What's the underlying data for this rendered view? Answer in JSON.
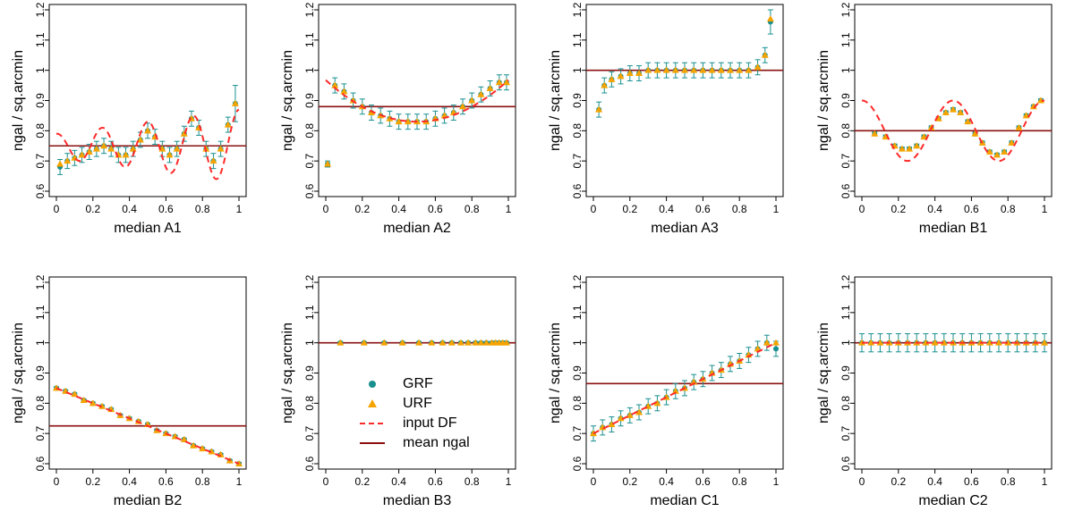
{
  "colors": {
    "grf": "#1a8f8f",
    "urf": "#f5a300",
    "input_df": "#ff2a2a",
    "mean_ngal": "#8b1010",
    "axis": "#000000"
  },
  "legend": {
    "panel": "median B3",
    "items": [
      {
        "label": "GRF",
        "marker": "circle",
        "color": "#1a8f8f"
      },
      {
        "label": "URF",
        "marker": "triangle",
        "color": "#f5a300"
      },
      {
        "label": "input DF",
        "marker": "dashed-line",
        "color": "#ff2a2a"
      },
      {
        "label": "mean ngal",
        "marker": "solid-line",
        "color": "#8b1010"
      }
    ]
  },
  "chart_data": [
    {
      "type": "scatter",
      "title": "",
      "xlabel": "median A1",
      "ylabel": "ngal / sq.arcmin",
      "xlim": [
        0,
        1
      ],
      "ylim": [
        0.6,
        1.2
      ],
      "xticks": [
        "0",
        "0.2",
        "0.4",
        "0.6",
        "0.8",
        "1"
      ],
      "yticks": [
        "0.6",
        "0.7",
        "0.8",
        "0.9",
        "1",
        "1.1",
        "1.2"
      ],
      "mean_ngal": 0.75,
      "input_df": "0.75 + 0.05*sin(2*pi*4*x) scaled up toward x=1",
      "series": [
        {
          "name": "GRF",
          "x": [
            0.02,
            0.06,
            0.1,
            0.14,
            0.18,
            0.22,
            0.26,
            0.3,
            0.34,
            0.38,
            0.42,
            0.46,
            0.5,
            0.54,
            0.58,
            0.62,
            0.66,
            0.7,
            0.74,
            0.78,
            0.82,
            0.86,
            0.9,
            0.94,
            0.98
          ],
          "y": [
            0.68,
            0.7,
            0.71,
            0.72,
            0.73,
            0.74,
            0.75,
            0.74,
            0.72,
            0.72,
            0.74,
            0.77,
            0.8,
            0.78,
            0.74,
            0.72,
            0.74,
            0.79,
            0.84,
            0.81,
            0.74,
            0.7,
            0.74,
            0.82,
            0.89
          ]
        },
        {
          "name": "URF",
          "x": [
            0.02,
            0.06,
            0.1,
            0.14,
            0.18,
            0.22,
            0.26,
            0.3,
            0.34,
            0.38,
            0.42,
            0.46,
            0.5,
            0.54,
            0.58,
            0.62,
            0.66,
            0.7,
            0.74,
            0.78,
            0.82,
            0.86,
            0.9,
            0.94,
            0.98
          ],
          "y": [
            0.69,
            0.7,
            0.71,
            0.72,
            0.73,
            0.74,
            0.75,
            0.74,
            0.72,
            0.72,
            0.74,
            0.77,
            0.8,
            0.78,
            0.74,
            0.72,
            0.74,
            0.79,
            0.84,
            0.81,
            0.74,
            0.7,
            0.74,
            0.82,
            0.89
          ]
        }
      ]
    },
    {
      "type": "scatter",
      "title": "",
      "xlabel": "median A2",
      "ylabel": "ngal / sq.arcmin",
      "xlim": [
        0,
        1
      ],
      "ylim": [
        0.6,
        1.2
      ],
      "xticks": [
        "0",
        "0.2",
        "0.4",
        "0.6",
        "0.8",
        "1"
      ],
      "yticks": [
        "0.6",
        "0.7",
        "0.8",
        "0.9",
        "1",
        "1.1",
        "1.2"
      ],
      "mean_ngal": 0.88,
      "input_df": "0.83 + 0.55*(x-0.5)^2",
      "series": [
        {
          "name": "GRF",
          "x": [
            0.01,
            0.05,
            0.1,
            0.15,
            0.2,
            0.25,
            0.3,
            0.35,
            0.4,
            0.45,
            0.5,
            0.55,
            0.6,
            0.65,
            0.7,
            0.75,
            0.8,
            0.85,
            0.9,
            0.95,
            0.99
          ],
          "y": [
            0.69,
            0.95,
            0.93,
            0.9,
            0.88,
            0.86,
            0.85,
            0.84,
            0.83,
            0.83,
            0.83,
            0.83,
            0.84,
            0.85,
            0.86,
            0.88,
            0.9,
            0.92,
            0.94,
            0.96,
            0.96
          ]
        },
        {
          "name": "URF",
          "x": [
            0.01,
            0.05,
            0.1,
            0.15,
            0.2,
            0.25,
            0.3,
            0.35,
            0.4,
            0.45,
            0.5,
            0.55,
            0.6,
            0.65,
            0.7,
            0.75,
            0.8,
            0.85,
            0.9,
            0.95,
            0.99
          ],
          "y": [
            0.69,
            0.95,
            0.93,
            0.9,
            0.88,
            0.86,
            0.85,
            0.84,
            0.83,
            0.83,
            0.83,
            0.83,
            0.84,
            0.85,
            0.86,
            0.88,
            0.9,
            0.92,
            0.94,
            0.96,
            0.96
          ]
        }
      ]
    },
    {
      "type": "scatter",
      "title": "",
      "xlabel": "median A3",
      "ylabel": "ngal / sq.arcmin",
      "xlim": [
        0,
        1
      ],
      "ylim": [
        0.6,
        1.2
      ],
      "xticks": [
        "0",
        "0.2",
        "0.4",
        "0.6",
        "0.8",
        "1"
      ],
      "yticks": [
        "0.6",
        "0.7",
        "0.8",
        "0.9",
        "1",
        "1.1",
        "1.2"
      ],
      "mean_ngal": 1.0,
      "input_df": "",
      "series": [
        {
          "name": "GRF",
          "x": [
            0.03,
            0.06,
            0.1,
            0.15,
            0.2,
            0.25,
            0.3,
            0.35,
            0.4,
            0.45,
            0.5,
            0.55,
            0.6,
            0.65,
            0.7,
            0.75,
            0.8,
            0.85,
            0.9,
            0.94,
            0.97
          ],
          "y": [
            0.87,
            0.95,
            0.97,
            0.98,
            0.99,
            0.99,
            1.0,
            1.0,
            1.0,
            1.0,
            1.0,
            1.0,
            1.0,
            1.0,
            1.0,
            1.0,
            1.0,
            1.0,
            1.01,
            1.05,
            1.16
          ]
        },
        {
          "name": "URF",
          "x": [
            0.03,
            0.06,
            0.1,
            0.15,
            0.2,
            0.25,
            0.3,
            0.35,
            0.4,
            0.45,
            0.5,
            0.55,
            0.6,
            0.65,
            0.7,
            0.75,
            0.8,
            0.85,
            0.9,
            0.94,
            0.97
          ],
          "y": [
            0.87,
            0.95,
            0.97,
            0.98,
            0.99,
            0.99,
            1.0,
            1.0,
            1.0,
            1.0,
            1.0,
            1.0,
            1.0,
            1.0,
            1.0,
            1.0,
            1.0,
            1.0,
            1.01,
            1.05,
            1.17
          ]
        }
      ]
    },
    {
      "type": "scatter",
      "title": "",
      "xlabel": "median B1",
      "ylabel": "ngal / sq.arcmin",
      "xlim": [
        0,
        1
      ],
      "ylim": [
        0.6,
        1.2
      ],
      "xticks": [
        "0",
        "0.2",
        "0.4",
        "0.6",
        "0.8",
        "1"
      ],
      "yticks": [
        "0.6",
        "0.7",
        "0.8",
        "0.9",
        "1",
        "1.1",
        "1.2"
      ],
      "mean_ngal": 0.8,
      "input_df": "0.8 + 0.1*cos(4*pi*x)",
      "series": [
        {
          "name": "GRF",
          "x": [
            0.07,
            0.13,
            0.18,
            0.22,
            0.26,
            0.3,
            0.34,
            0.38,
            0.42,
            0.46,
            0.5,
            0.54,
            0.58,
            0.62,
            0.66,
            0.7,
            0.74,
            0.78,
            0.82,
            0.86,
            0.9,
            0.94,
            0.98
          ],
          "y": [
            0.79,
            0.78,
            0.75,
            0.74,
            0.74,
            0.75,
            0.78,
            0.81,
            0.84,
            0.86,
            0.87,
            0.86,
            0.83,
            0.79,
            0.76,
            0.73,
            0.72,
            0.73,
            0.76,
            0.81,
            0.85,
            0.88,
            0.9
          ]
        },
        {
          "name": "URF",
          "x": [
            0.07,
            0.13,
            0.18,
            0.22,
            0.26,
            0.3,
            0.34,
            0.38,
            0.42,
            0.46,
            0.5,
            0.54,
            0.58,
            0.62,
            0.66,
            0.7,
            0.74,
            0.78,
            0.82,
            0.86,
            0.9,
            0.94,
            0.98
          ],
          "y": [
            0.79,
            0.78,
            0.75,
            0.74,
            0.74,
            0.75,
            0.78,
            0.81,
            0.84,
            0.86,
            0.87,
            0.86,
            0.83,
            0.79,
            0.76,
            0.73,
            0.72,
            0.73,
            0.76,
            0.81,
            0.85,
            0.88,
            0.9
          ]
        }
      ]
    },
    {
      "type": "scatter",
      "title": "",
      "xlabel": "median B2",
      "ylabel": "ngal / sq.arcmin",
      "xlim": [
        0,
        1
      ],
      "ylim": [
        0.6,
        1.2
      ],
      "xticks": [
        "0",
        "0.2",
        "0.4",
        "0.6",
        "0.8",
        "1"
      ],
      "yticks": [
        "0.6",
        "0.7",
        "0.8",
        "0.9",
        "1",
        "1.1",
        "1.2"
      ],
      "mean_ngal": 0.725,
      "input_df": "0.85 - 0.25*x",
      "series": [
        {
          "name": "GRF",
          "x": [
            0.0,
            0.05,
            0.1,
            0.15,
            0.2,
            0.25,
            0.3,
            0.35,
            0.4,
            0.45,
            0.5,
            0.55,
            0.6,
            0.65,
            0.7,
            0.75,
            0.8,
            0.85,
            0.9,
            0.95,
            1.0
          ],
          "y": [
            0.85,
            0.84,
            0.83,
            0.81,
            0.8,
            0.79,
            0.78,
            0.76,
            0.75,
            0.74,
            0.73,
            0.71,
            0.7,
            0.69,
            0.68,
            0.66,
            0.65,
            0.64,
            0.63,
            0.61,
            0.6
          ]
        },
        {
          "name": "URF",
          "x": [
            0.0,
            0.05,
            0.1,
            0.15,
            0.2,
            0.25,
            0.3,
            0.35,
            0.4,
            0.45,
            0.5,
            0.55,
            0.6,
            0.65,
            0.7,
            0.75,
            0.8,
            0.85,
            0.9,
            0.95,
            1.0
          ],
          "y": [
            0.85,
            0.84,
            0.83,
            0.81,
            0.8,
            0.79,
            0.78,
            0.76,
            0.75,
            0.74,
            0.73,
            0.71,
            0.7,
            0.69,
            0.68,
            0.66,
            0.65,
            0.64,
            0.63,
            0.61,
            0.6
          ]
        }
      ]
    },
    {
      "type": "scatter",
      "title": "",
      "xlabel": "median B3",
      "ylabel": "ngal / sq.arcmin",
      "xlim": [
        0,
        1
      ],
      "ylim": [
        0.6,
        1.2
      ],
      "xticks": [
        "0",
        "0.2",
        "0.4",
        "0.6",
        "0.8",
        "1"
      ],
      "yticks": [
        "0.6",
        "0.7",
        "0.8",
        "0.9",
        "1",
        "1.1",
        "1.2"
      ],
      "mean_ngal": 1.0,
      "input_df": "",
      "series": [
        {
          "name": "GRF",
          "x": [
            0.08,
            0.21,
            0.32,
            0.42,
            0.51,
            0.58,
            0.64,
            0.69,
            0.74,
            0.78,
            0.82,
            0.85,
            0.88,
            0.91,
            0.93,
            0.95,
            0.97,
            0.99
          ],
          "y": [
            1.0,
            1.0,
            1.0,
            1.0,
            1.0,
            1.0,
            1.0,
            1.0,
            1.0,
            1.0,
            1.0,
            1.0,
            1.0,
            1.0,
            1.0,
            1.0,
            1.0,
            1.0
          ]
        },
        {
          "name": "URF",
          "x": [
            0.08,
            0.21,
            0.32,
            0.42,
            0.51,
            0.58,
            0.64,
            0.69,
            0.74,
            0.78,
            0.82,
            0.85,
            0.88,
            0.91,
            0.93,
            0.95,
            0.97,
            0.99
          ],
          "y": [
            1.0,
            1.0,
            1.0,
            1.0,
            1.0,
            1.0,
            1.0,
            1.0,
            1.0,
            1.0,
            1.0,
            1.0,
            1.0,
            1.0,
            1.0,
            1.0,
            1.0,
            1.0
          ]
        }
      ]
    },
    {
      "type": "scatter",
      "title": "",
      "xlabel": "median C1",
      "ylabel": "ngal / sq.arcmin",
      "xlim": [
        0,
        1
      ],
      "ylim": [
        0.6,
        1.2
      ],
      "xticks": [
        "0",
        "0.2",
        "0.4",
        "0.6",
        "0.8",
        "1"
      ],
      "yticks": [
        "0.6",
        "0.7",
        "0.8",
        "0.9",
        "1",
        "1.1",
        "1.2"
      ],
      "mean_ngal": 0.865,
      "input_df": "0.70 + 0.30*x",
      "series": [
        {
          "name": "GRF",
          "x": [
            0.0,
            0.05,
            0.1,
            0.15,
            0.2,
            0.25,
            0.3,
            0.35,
            0.4,
            0.45,
            0.5,
            0.55,
            0.6,
            0.65,
            0.7,
            0.75,
            0.8,
            0.85,
            0.9,
            0.95,
            1.0
          ],
          "y": [
            0.7,
            0.72,
            0.73,
            0.75,
            0.76,
            0.77,
            0.79,
            0.8,
            0.82,
            0.84,
            0.85,
            0.87,
            0.88,
            0.9,
            0.91,
            0.93,
            0.94,
            0.96,
            0.98,
            1.0,
            0.98
          ]
        },
        {
          "name": "URF",
          "x": [
            0.0,
            0.05,
            0.1,
            0.15,
            0.2,
            0.25,
            0.3,
            0.35,
            0.4,
            0.45,
            0.5,
            0.55,
            0.6,
            0.65,
            0.7,
            0.75,
            0.8,
            0.85,
            0.9,
            0.95,
            1.0
          ],
          "y": [
            0.7,
            0.72,
            0.73,
            0.75,
            0.76,
            0.77,
            0.79,
            0.8,
            0.82,
            0.84,
            0.85,
            0.87,
            0.88,
            0.9,
            0.91,
            0.93,
            0.94,
            0.96,
            0.98,
            1.0,
            1.0
          ]
        }
      ]
    },
    {
      "type": "scatter",
      "title": "",
      "xlabel": "median C2",
      "ylabel": "ngal / sq.arcmin",
      "xlim": [
        0,
        1
      ],
      "ylim": [
        0.6,
        1.2
      ],
      "xticks": [
        "0",
        "0.2",
        "0.4",
        "0.6",
        "0.8",
        "1"
      ],
      "yticks": [
        "0.6",
        "0.7",
        "0.8",
        "0.9",
        "1",
        "1.1",
        "1.2"
      ],
      "mean_ngal": 1.0,
      "input_df": "1.0",
      "series": [
        {
          "name": "GRF",
          "x": [
            0.0,
            0.05,
            0.1,
            0.15,
            0.2,
            0.25,
            0.3,
            0.35,
            0.4,
            0.45,
            0.5,
            0.55,
            0.6,
            0.65,
            0.7,
            0.75,
            0.8,
            0.85,
            0.9,
            0.95,
            1.0
          ],
          "y": [
            1.0,
            1.0,
            1.0,
            1.0,
            1.0,
            1.0,
            1.0,
            1.0,
            1.0,
            1.0,
            1.0,
            1.0,
            1.0,
            1.0,
            1.0,
            1.0,
            1.0,
            1.0,
            1.0,
            1.0,
            1.0
          ]
        },
        {
          "name": "URF",
          "x": [
            0.0,
            0.05,
            0.1,
            0.15,
            0.2,
            0.25,
            0.3,
            0.35,
            0.4,
            0.45,
            0.5,
            0.55,
            0.6,
            0.65,
            0.7,
            0.75,
            0.8,
            0.85,
            0.9,
            0.95,
            1.0
          ],
          "y": [
            1.0,
            1.0,
            1.0,
            1.0,
            1.0,
            1.0,
            1.0,
            1.0,
            1.0,
            1.0,
            1.0,
            1.0,
            1.0,
            1.0,
            1.0,
            1.0,
            1.0,
            1.0,
            1.0,
            1.0,
            1.0
          ]
        }
      ]
    }
  ]
}
